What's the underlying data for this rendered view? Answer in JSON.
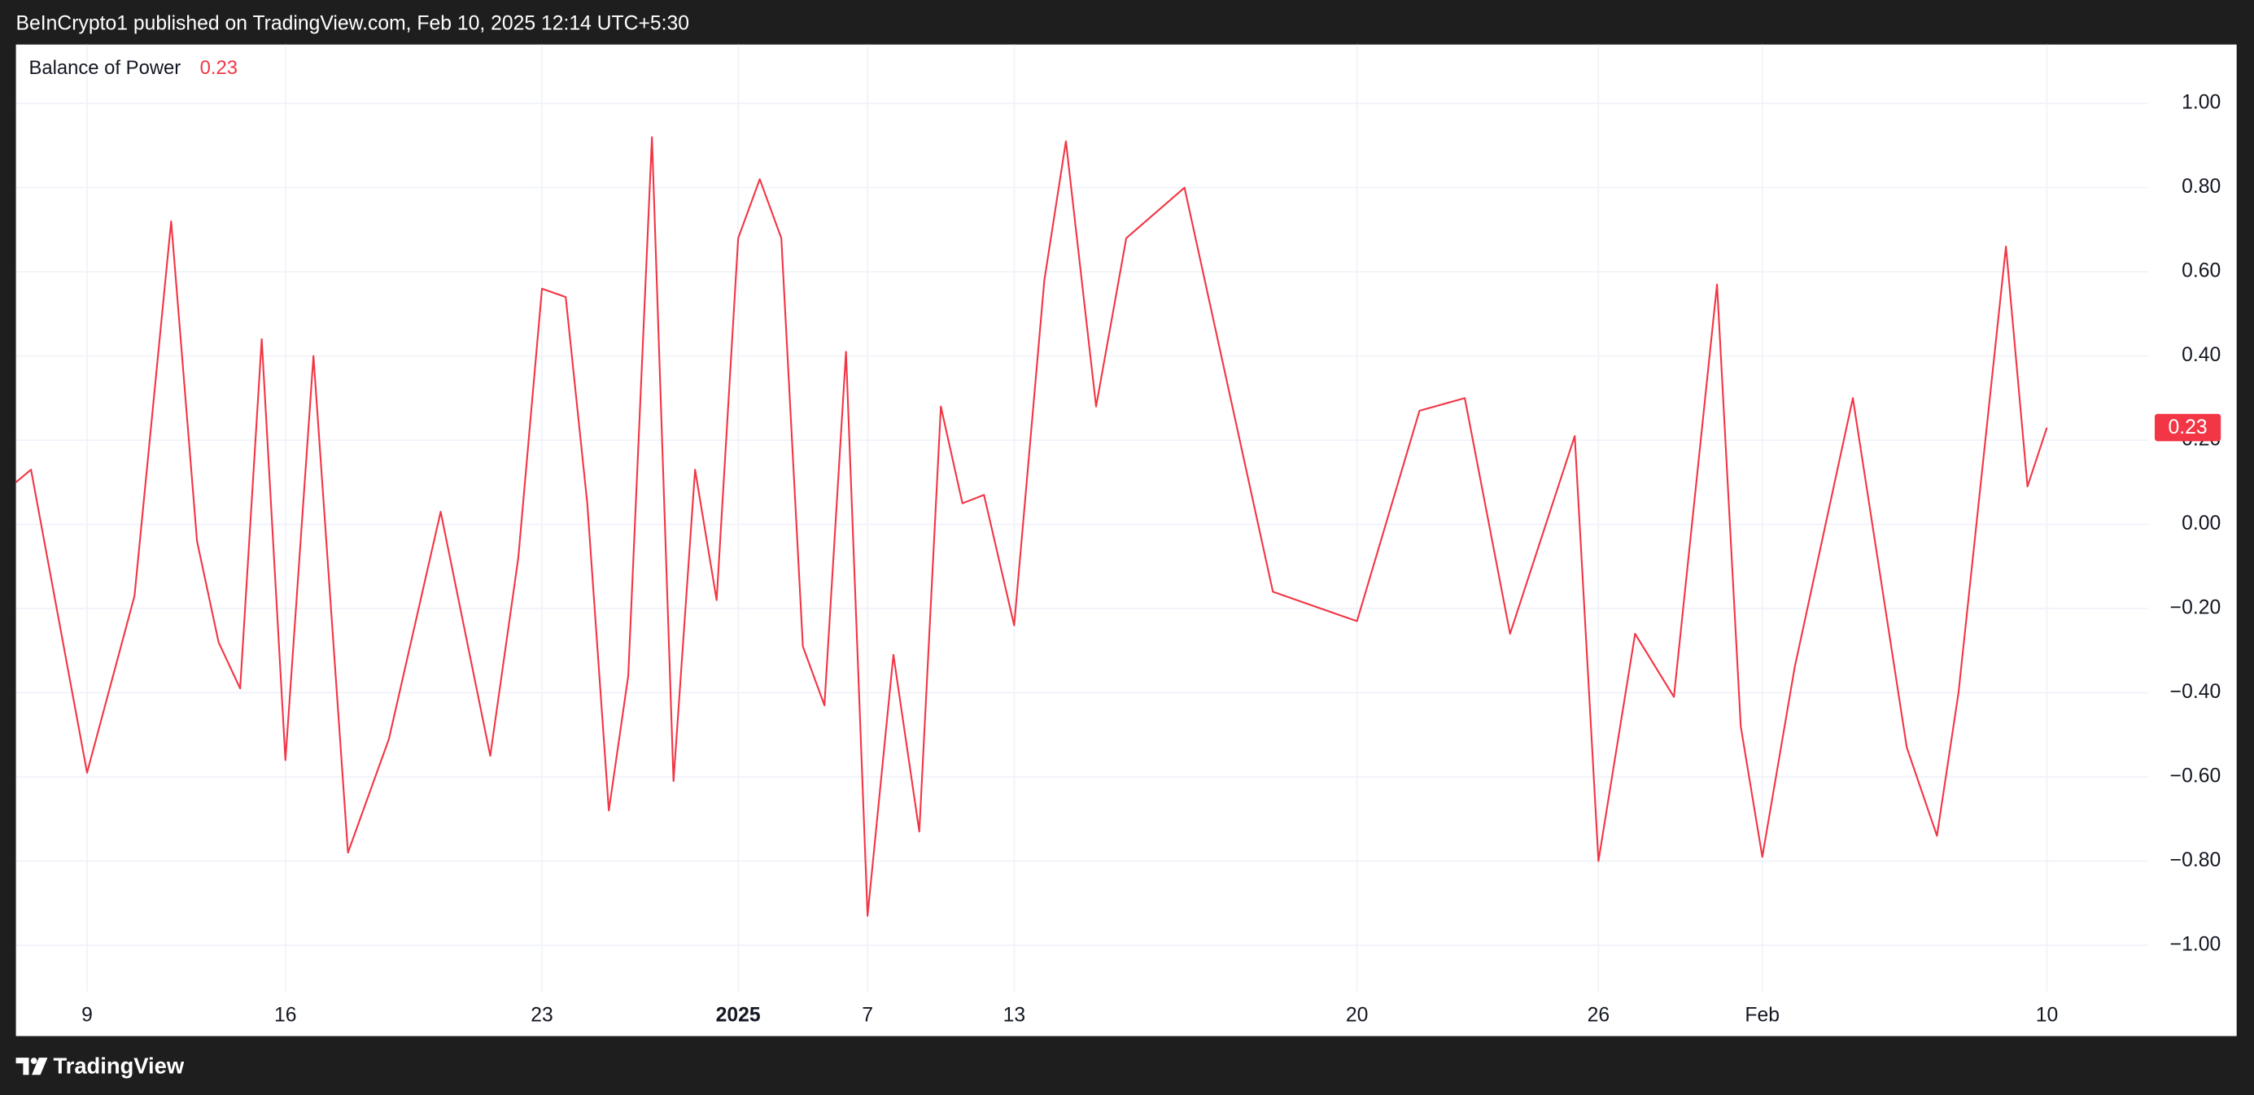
{
  "header": {
    "text": "BeInCrypto1 published on TradingView.com, Feb 10, 2025 12:14 UTC+5:30"
  },
  "footer": {
    "brand": "TradingView"
  },
  "chart_data": {
    "type": "line",
    "title": "Balance of Power",
    "x": [
      0,
      0.7,
      3.3,
      5.5,
      7.2,
      8.4,
      9.4,
      10.4,
      11.4,
      12.5,
      13.8,
      15.4,
      17.3,
      19.7,
      22,
      23.3,
      24.4,
      25.5,
      26.5,
      27.5,
      28.4,
      29.5,
      30.5,
      31.5,
      32.5,
      33.5,
      34.5,
      35.5,
      36.5,
      37.5,
      38.5,
      39.5,
      40.7,
      41.9,
      42.9,
      43.9,
      44.9,
      46.3,
      47.7,
      48.7,
      50.1,
      51.5,
      54.2,
      58.3,
      62.2,
      65.1,
      67.2,
      69.3,
      72.3,
      73.4,
      75.1,
      76.9,
      78.9,
      80,
      81,
      82.5,
      85.2,
      87.7,
      89.1,
      90.1,
      92.3,
      93.3,
      94.2
    ],
    "series": [
      {
        "name": "Balance of Power",
        "color": "#f23645",
        "values": [
          0.1,
          0.13,
          -0.59,
          -0.17,
          0.72,
          -0.04,
          -0.28,
          -0.39,
          0.44,
          -0.56,
          0.4,
          -0.78,
          -0.51,
          0.03,
          -0.55,
          -0.08,
          0.56,
          0.54,
          0.05,
          -0.68,
          -0.36,
          0.92,
          -0.61,
          0.13,
          -0.18,
          0.68,
          0.82,
          0.68,
          -0.29,
          -0.43,
          0.41,
          -0.93,
          -0.31,
          -0.73,
          0.28,
          0.05,
          0.07,
          -0.24,
          0.58,
          0.91,
          0.28,
          0.68,
          0.8,
          -0.16,
          -0.23,
          0.27,
          0.3,
          -0.26,
          0.21,
          -0.8,
          -0.26,
          -0.41,
          0.57,
          -0.48,
          -0.79,
          -0.34,
          0.3,
          -0.53,
          -0.74,
          -0.4,
          0.66,
          0.09,
          0.23
        ]
      }
    ],
    "xlim": [
      0,
      98.9
    ],
    "xticks": [
      {
        "value": 3.3,
        "label": "9"
      },
      {
        "value": 12.5,
        "label": "16"
      },
      {
        "value": 24.4,
        "label": "23"
      },
      {
        "value": 33.5,
        "label": "2025"
      },
      {
        "value": 39.5,
        "label": "7"
      },
      {
        "value": 46.3,
        "label": "13"
      },
      {
        "value": 62.2,
        "label": "20"
      },
      {
        "value": 73.4,
        "label": "26"
      },
      {
        "value": 81,
        "label": "Feb"
      },
      {
        "value": 94.2,
        "label": "10"
      }
    ],
    "ylim": [
      -1.11,
      1.14
    ],
    "yticks": [
      {
        "value": 1,
        "label": "1.00"
      },
      {
        "value": 0.8,
        "label": "0.80"
      },
      {
        "value": 0.6,
        "label": "0.60"
      },
      {
        "value": 0.4,
        "label": "0.40"
      },
      {
        "value": 0.2,
        "label": "0.20"
      },
      {
        "value": 0,
        "label": "0.00"
      },
      {
        "value": -0.2,
        "label": "−0.20"
      },
      {
        "value": -0.4,
        "label": "−0.40"
      },
      {
        "value": -0.6,
        "label": "−0.60"
      },
      {
        "value": -0.8,
        "label": "−0.80"
      },
      {
        "value": -1,
        "label": "−1.00"
      }
    ],
    "grid": true
  }
}
